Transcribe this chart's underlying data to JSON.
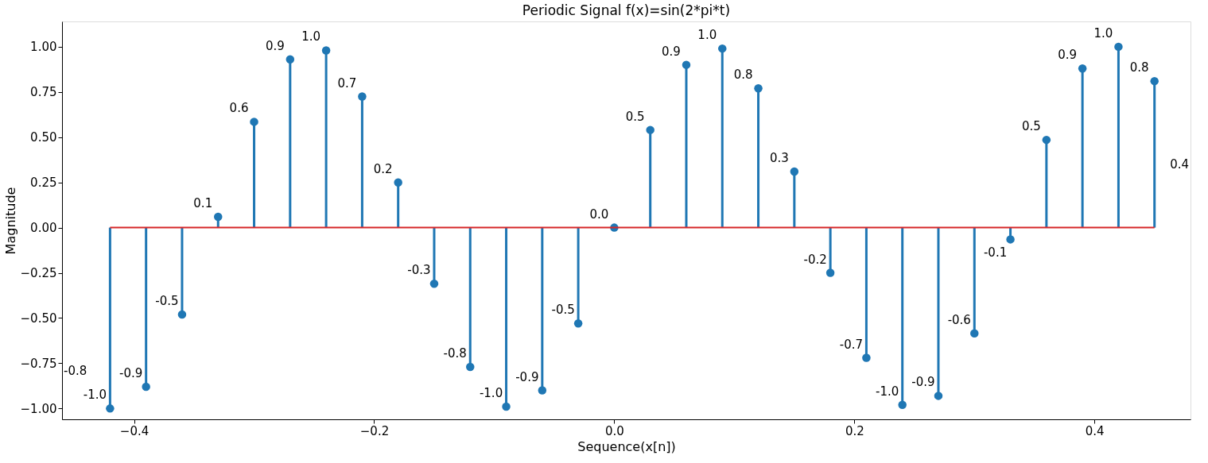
{
  "chart_data": {
    "type": "lollipop",
    "title": "Periodic Signal f(x)=sin(2*pi*t)",
    "xlabel": "Sequence(x[n])",
    "ylabel": "Magnitude",
    "x": [
      -0.42,
      -0.39,
      -0.36,
      -0.33,
      -0.3,
      -0.27,
      -0.24,
      -0.21,
      -0.18,
      -0.15,
      -0.12,
      -0.09,
      -0.06,
      -0.03,
      0.0,
      0.03,
      0.06,
      0.09,
      0.12,
      0.15,
      0.18,
      0.21,
      0.24,
      0.27,
      0.3,
      0.33,
      0.36,
      0.39,
      0.42,
      0.45
    ],
    "series": [
      {
        "color": "#1f77b4",
        "values": [
          -1.0,
          -0.88,
          -0.48,
          0.06,
          0.585,
          0.93,
          0.98,
          0.725,
          0.25,
          -0.31,
          -0.77,
          -0.99,
          -0.9,
          -0.53,
          0.0,
          0.54,
          0.9,
          0.99,
          0.77,
          0.31,
          -0.25,
          -0.72,
          -0.98,
          -0.93,
          -0.585,
          -0.065,
          0.485,
          0.88,
          1.0,
          0.81
        ],
        "value_labels": [
          "-1.0",
          "-0.9",
          "-0.5",
          "0.1",
          "0.6",
          "0.9",
          "1.0",
          "0.7",
          "0.2",
          "-0.3",
          "-0.8",
          "-1.0",
          "-0.9",
          "-0.5",
          "0.0",
          "0.5",
          "0.9",
          "1.0",
          "0.8",
          "0.3",
          "-0.2",
          "-0.7",
          "-1.0",
          "-0.9",
          "-0.6",
          "-0.1",
          "0.5",
          "0.9",
          "1.0",
          "0.8"
        ]
      }
    ],
    "marker": "circle",
    "grid": false,
    "ref_lines": [
      {
        "axis": "y",
        "value": 0,
        "color": "#d62728"
      }
    ],
    "annotations": [
      "-0.8",
      "0.4"
    ],
    "xlim": [
      -0.46,
      0.48
    ],
    "ylim": [
      -1.06,
      1.14
    ],
    "xticks": [
      {
        "value": -0.4,
        "label": "−0.4"
      },
      {
        "value": -0.2,
        "label": "−0.2"
      },
      {
        "value": 0.0,
        "label": "0.0"
      },
      {
        "value": 0.2,
        "label": "0.2"
      },
      {
        "value": 0.4,
        "label": "0.4"
      }
    ],
    "yticks": [
      {
        "value": -1.0,
        "label": "−1.00"
      },
      {
        "value": -0.75,
        "label": "−0.75"
      },
      {
        "value": -0.5,
        "label": "−0.50"
      },
      {
        "value": -0.25,
        "label": "−0.25"
      },
      {
        "value": 0.0,
        "label": "0.00"
      },
      {
        "value": 0.25,
        "label": "0.25"
      },
      {
        "value": 0.5,
        "label": "0.50"
      },
      {
        "value": 0.75,
        "label": "0.75"
      },
      {
        "value": 1.0,
        "label": "1.00"
      }
    ]
  }
}
